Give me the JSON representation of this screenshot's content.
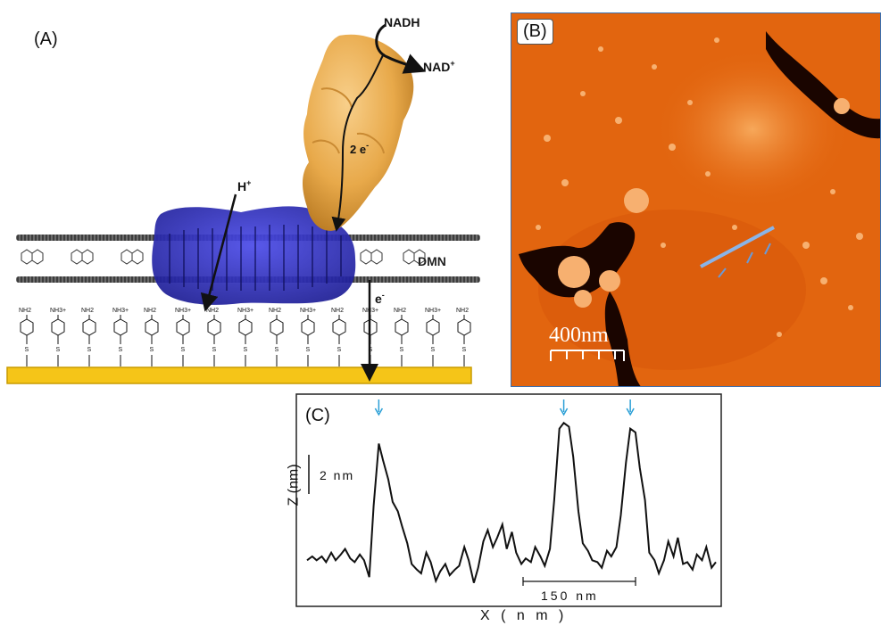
{
  "panel_a": {
    "label": "(A)",
    "nadh": "NADH",
    "nad_plus": "NAD",
    "nad_plus_sup": "+",
    "two_e": "2 e",
    "two_e_sup": "-",
    "h_plus": "H",
    "h_plus_sup": "+",
    "dmn": "DMN",
    "e_minus": "e",
    "e_minus_sup": "-",
    "nh2": "NH2",
    "nh3": "NH3+",
    "s": "S",
    "monolayer_pattern": [
      "NH2",
      "NH3+",
      "NH2",
      "NH3+",
      "NH2",
      "NH3+",
      "NH2",
      "NH3+",
      "NH2",
      "NH3+",
      "NH2",
      "NH3+",
      "NH2",
      "NH3+",
      "NH2"
    ],
    "colors": {
      "protein_orange": "#e8a94a",
      "protein_blue": "#2e2ec8",
      "gold": "#f5c518",
      "membrane": "#5a5a5a"
    }
  },
  "panel_b": {
    "label": "(B)",
    "scale_bar": "400nm",
    "colors": {
      "background": "#e2650f",
      "highlight": "#f7a85a",
      "dark": "#1a0500",
      "profile_line": "#8ab4e8"
    }
  },
  "panel_c": {
    "label": "(C)",
    "scale_z": "2 nm",
    "scale_x": "150 nm",
    "ylabel": "Z (nm)",
    "xlabel": "X ( n m )",
    "arrow_color": "#2a9fd6"
  },
  "chart_data": {
    "type": "line",
    "title": "",
    "xlabel": "X (nm)",
    "ylabel": "Z (nm)",
    "grid": false,
    "x": [
      0,
      6,
      11,
      17,
      22,
      28,
      33,
      39,
      44,
      50,
      55,
      61,
      66,
      72,
      77,
      83,
      88,
      94,
      99,
      105,
      110,
      116,
      121,
      127,
      132,
      138,
      143,
      149,
      154,
      160,
      165,
      171,
      176,
      182,
      187,
      193,
      198,
      204,
      209,
      215,
      220,
      226,
      231,
      237,
      242,
      248,
      253,
      259,
      264,
      270,
      275,
      281,
      286,
      292,
      297,
      303,
      308,
      314,
      319,
      325,
      330,
      336,
      341,
      347,
      352,
      358,
      363,
      369,
      374,
      380,
      385,
      391,
      396,
      402,
      407,
      413,
      418,
      424,
      429,
      435,
      440,
      446,
      451,
      457,
      462,
      468,
      473
    ],
    "y": [
      0.6,
      0.8,
      0.6,
      0.8,
      0.5,
      1.0,
      0.6,
      0.9,
      1.2,
      0.7,
      0.5,
      0.9,
      0.6,
      -0.3,
      3.5,
      6.8,
      5.9,
      4.9,
      3.7,
      3.2,
      2.4,
      1.5,
      0.4,
      0.1,
      -0.1,
      1.0,
      0.5,
      -0.5,
      0.0,
      0.4,
      -0.2,
      0.1,
      0.3,
      1.3,
      0.6,
      -0.6,
      0.2,
      1.6,
      2.2,
      1.3,
      1.8,
      2.5,
      1.2,
      2.1,
      1.0,
      0.4,
      0.7,
      0.5,
      1.3,
      0.8,
      0.3,
      1.2,
      3.8,
      7.6,
      7.9,
      7.7,
      6.1,
      3.2,
      1.5,
      1.1,
      0.6,
      0.5,
      0.2,
      1.1,
      0.8,
      1.3,
      3.0,
      5.8,
      7.6,
      7.4,
      5.5,
      3.8,
      1.0,
      0.6,
      -0.1,
      0.6,
      1.6,
      0.8,
      1.8,
      0.4,
      0.5,
      0.1,
      0.9,
      0.6,
      1.3,
      0.2,
      0.5
    ],
    "peaks": [
      15,
      54,
      68
    ]
  }
}
